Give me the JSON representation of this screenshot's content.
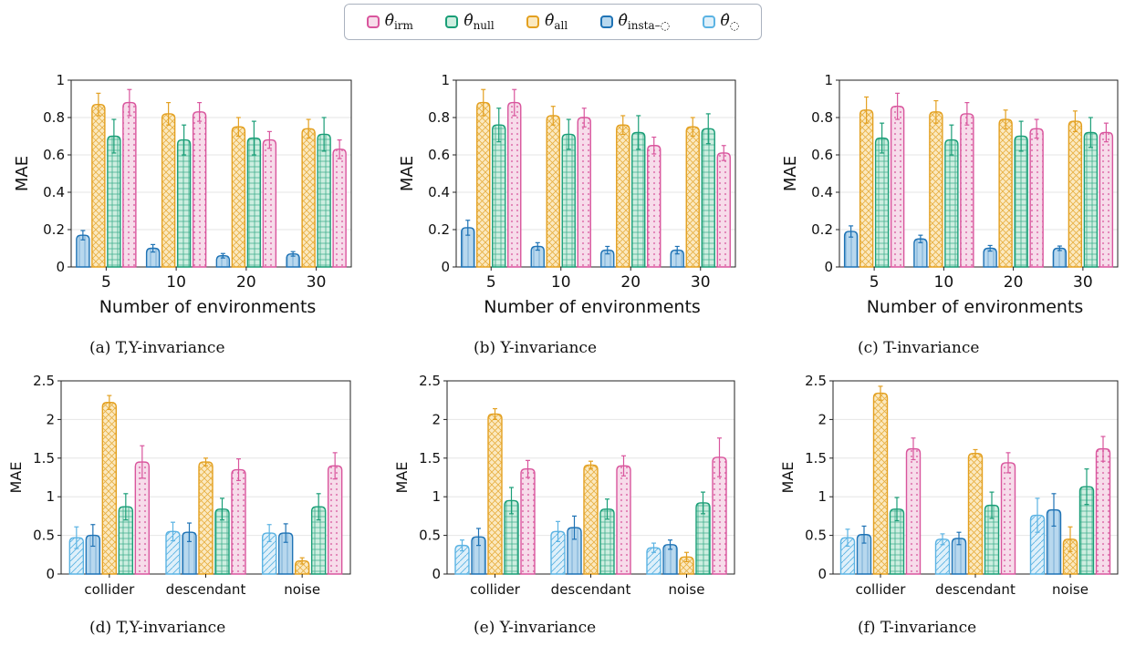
{
  "legend": {
    "items": [
      {
        "symbol": "θ̂",
        "sub": "irm",
        "color": "#d9559d",
        "fill": "#f7dcea"
      },
      {
        "symbol": "θ̂",
        "sub": "null",
        "color": "#1a9e77",
        "fill": "#cdeee0"
      },
      {
        "symbol": "θ̂",
        "sub": "all",
        "color": "#e3a020",
        "fill": "#fbe9c0"
      },
      {
        "symbol": "θ̂",
        "sub": "insta–◌",
        "color": "#1f73b5",
        "fill": "#b8d8ee"
      },
      {
        "symbol": "θ̂",
        "sub": "◌",
        "color": "#5bb3e3",
        "fill": "#dff0fa"
      }
    ]
  },
  "colors": {
    "irm": "#d9559d",
    "null": "#1a9e77",
    "all": "#e3a020",
    "insta": "#1f73b5",
    "base": "#5bb3e3"
  },
  "chart_data": [
    {
      "type": "bar",
      "caption": "(a) T,Y-invariance",
      "xlabel": "Number of environments",
      "ylabel": "MAE",
      "ylim": [
        0,
        1
      ],
      "yticks": [
        "0",
        "0.2",
        "0.4",
        "0.6",
        "0.8",
        "1"
      ],
      "ytick_values": [
        0,
        0.2,
        0.4,
        0.6,
        0.8,
        1
      ],
      "categories": [
        "5",
        "10",
        "20",
        "30"
      ],
      "series": [
        {
          "key": "insta",
          "values": [
            0.17,
            0.1,
            0.06,
            0.07
          ],
          "errors": [
            0.025,
            0.02,
            0.012,
            0.012
          ]
        },
        {
          "key": "all",
          "values": [
            0.87,
            0.82,
            0.75,
            0.74
          ],
          "errors": [
            0.06,
            0.06,
            0.05,
            0.05
          ]
        },
        {
          "key": "null",
          "values": [
            0.7,
            0.68,
            0.69,
            0.71
          ],
          "errors": [
            0.09,
            0.08,
            0.09,
            0.09
          ]
        },
        {
          "key": "irm",
          "values": [
            0.88,
            0.83,
            0.68,
            0.63
          ],
          "errors": [
            0.07,
            0.05,
            0.045,
            0.05
          ]
        }
      ]
    },
    {
      "type": "bar",
      "caption": "(b) Y-invariance",
      "xlabel": "Number of environments",
      "ylabel": "MAE",
      "ylim": [
        0,
        1
      ],
      "yticks": [
        "0",
        "0.2",
        "0.4",
        "0.6",
        "0.8",
        "1"
      ],
      "ytick_values": [
        0,
        0.2,
        0.4,
        0.6,
        0.8,
        1
      ],
      "categories": [
        "5",
        "10",
        "20",
        "30"
      ],
      "series": [
        {
          "key": "insta",
          "values": [
            0.21,
            0.11,
            0.09,
            0.09
          ],
          "errors": [
            0.04,
            0.02,
            0.02,
            0.02
          ]
        },
        {
          "key": "all",
          "values": [
            0.88,
            0.81,
            0.76,
            0.75
          ],
          "errors": [
            0.07,
            0.05,
            0.05,
            0.05
          ]
        },
        {
          "key": "null",
          "values": [
            0.76,
            0.71,
            0.72,
            0.74
          ],
          "errors": [
            0.09,
            0.08,
            0.09,
            0.08
          ]
        },
        {
          "key": "irm",
          "values": [
            0.88,
            0.8,
            0.65,
            0.61
          ],
          "errors": [
            0.07,
            0.05,
            0.045,
            0.04
          ]
        }
      ]
    },
    {
      "type": "bar",
      "caption": "(c) T-invariance",
      "xlabel": "Number of environments",
      "ylabel": "MAE",
      "ylim": [
        0,
        1
      ],
      "yticks": [
        "0",
        "0.2",
        "0.4",
        "0.6",
        "0.8",
        "1"
      ],
      "ytick_values": [
        0,
        0.2,
        0.4,
        0.6,
        0.8,
        1
      ],
      "categories": [
        "5",
        "10",
        "20",
        "30"
      ],
      "series": [
        {
          "key": "insta",
          "values": [
            0.19,
            0.15,
            0.1,
            0.1
          ],
          "errors": [
            0.03,
            0.02,
            0.015,
            0.012
          ]
        },
        {
          "key": "all",
          "values": [
            0.84,
            0.83,
            0.79,
            0.78
          ],
          "errors": [
            0.07,
            0.06,
            0.05,
            0.055
          ]
        },
        {
          "key": "null",
          "values": [
            0.69,
            0.68,
            0.7,
            0.72
          ],
          "errors": [
            0.08,
            0.08,
            0.08,
            0.08
          ]
        },
        {
          "key": "irm",
          "values": [
            0.86,
            0.82,
            0.74,
            0.72
          ],
          "errors": [
            0.07,
            0.06,
            0.05,
            0.05
          ]
        }
      ]
    },
    {
      "type": "bar",
      "caption": "(d) T,Y-invariance",
      "xlabel": "",
      "ylabel": "MAE",
      "ylim": [
        0,
        2.5
      ],
      "yticks": [
        "0",
        "0.5",
        "1",
        "1.5",
        "2",
        "2.5"
      ],
      "ytick_values": [
        0,
        0.5,
        1,
        1.5,
        2,
        2.5
      ],
      "categories": [
        "collider",
        "descendant",
        "noise"
      ],
      "series": [
        {
          "key": "base",
          "values": [
            0.47,
            0.55,
            0.53
          ],
          "errors": [
            0.14,
            0.12,
            0.11
          ]
        },
        {
          "key": "insta",
          "values": [
            0.5,
            0.54,
            0.53
          ],
          "errors": [
            0.14,
            0.12,
            0.12
          ]
        },
        {
          "key": "all",
          "values": [
            2.22,
            1.45,
            0.17
          ],
          "errors": [
            0.09,
            0.05,
            0.04
          ]
        },
        {
          "key": "null",
          "values": [
            0.87,
            0.84,
            0.87
          ],
          "errors": [
            0.17,
            0.14,
            0.17
          ]
        },
        {
          "key": "irm",
          "values": [
            1.45,
            1.35,
            1.4
          ],
          "errors": [
            0.21,
            0.14,
            0.17
          ]
        }
      ]
    },
    {
      "type": "bar",
      "caption": "(e) Y-invariance",
      "xlabel": "",
      "ylabel": "MAE",
      "ylim": [
        0,
        2.5
      ],
      "yticks": [
        "0",
        "0.5",
        "1",
        "1.5",
        "2",
        "2.5"
      ],
      "ytick_values": [
        0,
        0.5,
        1,
        1.5,
        2,
        2.5
      ],
      "categories": [
        "collider",
        "descendant",
        "noise"
      ],
      "series": [
        {
          "key": "base",
          "values": [
            0.37,
            0.55,
            0.34
          ],
          "errors": [
            0.07,
            0.13,
            0.06
          ]
        },
        {
          "key": "insta",
          "values": [
            0.48,
            0.6,
            0.38
          ],
          "errors": [
            0.11,
            0.15,
            0.06
          ]
        },
        {
          "key": "all",
          "values": [
            2.07,
            1.41,
            0.22
          ],
          "errors": [
            0.07,
            0.05,
            0.06
          ]
        },
        {
          "key": "null",
          "values": [
            0.95,
            0.84,
            0.92
          ],
          "errors": [
            0.17,
            0.13,
            0.14
          ]
        },
        {
          "key": "irm",
          "values": [
            1.36,
            1.4,
            1.51
          ],
          "errors": [
            0.11,
            0.13,
            0.25
          ]
        }
      ]
    },
    {
      "type": "bar",
      "caption": "(f) T-invariance",
      "xlabel": "",
      "ylabel": "MAE",
      "ylim": [
        0,
        2.5
      ],
      "yticks": [
        "0",
        "0.5",
        "1",
        "1.5",
        "2",
        "2.5"
      ],
      "ytick_values": [
        0,
        0.5,
        1,
        1.5,
        2,
        2.5
      ],
      "categories": [
        "collider",
        "descendant",
        "noise"
      ],
      "series": [
        {
          "key": "base",
          "values": [
            0.47,
            0.45,
            0.76
          ],
          "errors": [
            0.11,
            0.07,
            0.22
          ]
        },
        {
          "key": "insta",
          "values": [
            0.51,
            0.46,
            0.83
          ],
          "errors": [
            0.11,
            0.08,
            0.21
          ]
        },
        {
          "key": "all",
          "values": [
            2.34,
            1.56,
            0.45
          ],
          "errors": [
            0.09,
            0.05,
            0.16
          ]
        },
        {
          "key": "null",
          "values": [
            0.84,
            0.89,
            1.13
          ],
          "errors": [
            0.15,
            0.17,
            0.23
          ]
        },
        {
          "key": "irm",
          "values": [
            1.62,
            1.44,
            1.62
          ],
          "errors": [
            0.14,
            0.13,
            0.16
          ]
        }
      ]
    }
  ]
}
